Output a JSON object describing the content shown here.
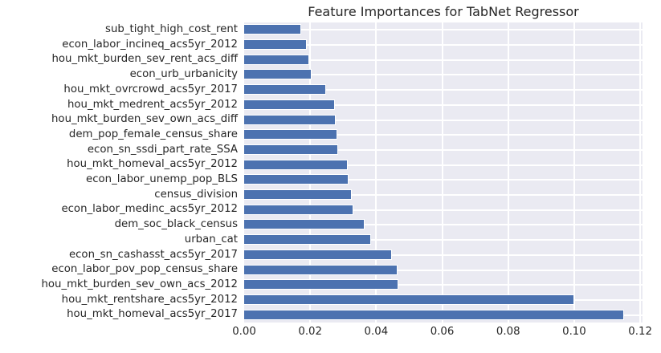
{
  "chart_data": {
    "type": "bar",
    "orientation": "horizontal",
    "title": "Feature Importances for TabNet Regressor",
    "xlabel": "",
    "ylabel": "",
    "categories": [
      "sub_tight_high_cost_rent",
      "econ_labor_incineq_acs5yr_2012",
      "hou_mkt_burden_sev_rent_acs_diff",
      "econ_urb_urbanicity",
      "hou_mkt_ovrcrowd_acs5yr_2017",
      "hou_mkt_medrent_acs5yr_2012",
      "hou_mkt_burden_sev_own_acs_diff",
      "dem_pop_female_census_share",
      "econ_sn_ssdi_part_rate_SSA",
      "hou_mkt_homeval_acs5yr_2012",
      "econ_labor_unemp_pop_BLS",
      "census_division",
      "econ_labor_medinc_acs5yr_2012",
      "dem_soc_black_census",
      "urban_cat",
      "econ_sn_cashasst_acs5yr_2017",
      "econ_labor_pov_pop_census_share",
      "hou_mkt_burden_sev_own_acs_2012",
      "hou_mkt_rentshare_acs5yr_2012",
      "hou_mkt_homeval_acs5yr_2017"
    ],
    "values": [
      0.017,
      0.0188,
      0.0195,
      0.0202,
      0.0246,
      0.0273,
      0.0275,
      0.0279,
      0.0283,
      0.0311,
      0.0314,
      0.0323,
      0.0328,
      0.0363,
      0.0381,
      0.0446,
      0.0463,
      0.0464,
      0.0997,
      0.1148
    ],
    "xlim": [
      0,
      0.1207
    ],
    "xticks": [
      0.0,
      0.02,
      0.04,
      0.06,
      0.08,
      0.1,
      0.12
    ],
    "xtick_labels": [
      "0.00",
      "0.02",
      "0.04",
      "0.06",
      "0.08",
      "0.10",
      "0.12"
    ],
    "grid": true,
    "legend": false,
    "colors": {
      "bar": "#4c72b0",
      "bar_edge": "#ffffff",
      "plot_background": "#eaeaf2",
      "figure_background": "#ffffff",
      "gridline": "#ffffff",
      "text": "#262626"
    }
  }
}
